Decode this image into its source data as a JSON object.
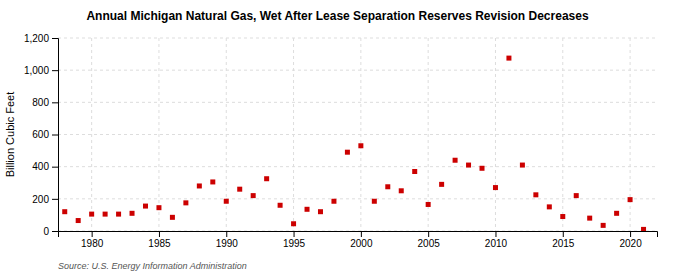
{
  "chart_data": {
    "type": "scatter",
    "title": "Annual Michigan Natural Gas, Wet After Lease Separation Reserves Revision Decreases",
    "ylabel": "Billion Cubic Feet",
    "annotations": [
      "Source: U.S. Energy Information Administration"
    ],
    "x": [
      1978,
      1979,
      1980,
      1981,
      1982,
      1983,
      1984,
      1985,
      1986,
      1987,
      1988,
      1989,
      1990,
      1991,
      1992,
      1993,
      1994,
      1995,
      1996,
      1997,
      1998,
      1999,
      2000,
      2001,
      2002,
      2003,
      2004,
      2005,
      2006,
      2007,
      2008,
      2009,
      2010,
      2011,
      2012,
      2013,
      2014,
      2015,
      2016,
      2017,
      2018,
      2019,
      2020,
      2021
    ],
    "values": [
      120,
      65,
      105,
      105,
      105,
      110,
      155,
      145,
      85,
      175,
      280,
      305,
      185,
      260,
      220,
      325,
      160,
      45,
      135,
      120,
      185,
      490,
      530,
      185,
      275,
      250,
      370,
      165,
      290,
      440,
      410,
      390,
      270,
      1075,
      410,
      225,
      150,
      90,
      220,
      80,
      35,
      110,
      195,
      10
    ],
    "color": "#cc0000",
    "marker": "square",
    "grid": true,
    "xlim": [
      1977.5,
      2022
    ],
    "xticks": [
      1980,
      1985,
      1990,
      1995,
      2000,
      2005,
      2010,
      2015,
      2020
    ],
    "ylim": [
      0,
      1200
    ],
    "yticks": [
      0,
      200,
      400,
      600,
      800,
      {
        "value": 1000,
        "label": "1,000"
      },
      {
        "value": 1200,
        "label": "1,200"
      }
    ]
  }
}
